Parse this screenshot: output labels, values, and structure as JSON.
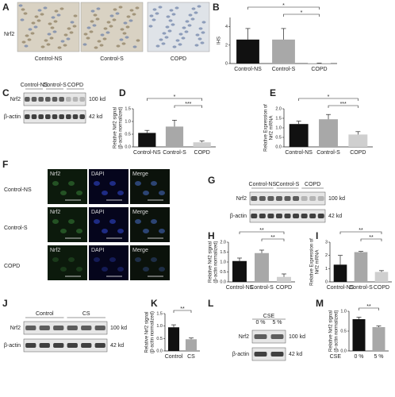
{
  "panel_letters": [
    "A",
    "B",
    "C",
    "D",
    "E",
    "F",
    "G",
    "H",
    "I",
    "J",
    "K",
    "L",
    "M"
  ],
  "micrographs": {
    "row_label": "Nrf2",
    "labels": [
      "Control-NS",
      "Control-S",
      "COPD"
    ]
  },
  "fluorescence": {
    "columns": [
      "Nrf2",
      "DAPI",
      "Merge"
    ],
    "rows": [
      "Control-NS",
      "Control-S",
      "COPD"
    ]
  },
  "blots": [
    {
      "groups": [
        "Control-NS",
        "Control-S",
        "COPD"
      ],
      "rows": [
        "Nrf2",
        "β-actin"
      ],
      "sizes": [
        "100 kd",
        "42 kd"
      ]
    },
    {
      "groups": [
        "Control-NS",
        "Control-S",
        "COPD"
      ],
      "rows": [
        "Nrf2",
        "β-actin"
      ],
      "sizes": [
        "100 kd",
        "42 kd"
      ]
    },
    {
      "groups": [
        "Control",
        "CS"
      ],
      "rows": [
        "Nrf2",
        "β-actin"
      ],
      "sizes": [
        "100 kd",
        "42 kd"
      ]
    },
    {
      "header": "CSE",
      "groups": [
        "0 %",
        "5 %"
      ],
      "rows": [
        "Nrf2",
        "β-actin"
      ],
      "sizes": [
        "100 kd",
        "42 kd"
      ]
    }
  ],
  "chart_data": [
    {
      "type": "bar",
      "ylabel": [
        "IHS"
      ],
      "categories": [
        "Control-NS",
        "Control-S",
        "COPD"
      ],
      "colors": [
        "#111111",
        "#a8a8a8",
        "#cfcfcf"
      ],
      "values": [
        2.6,
        2.6,
        0.05
      ],
      "errors": [
        1.2,
        1.2,
        0
      ],
      "ylim": [
        0,
        5
      ],
      "yticks": [
        0,
        2,
        4
      ],
      "annotations": [
        "*",
        "*"
      ]
    },
    {
      "type": "bar",
      "ylabel": [
        "Relative Nrf2 signal",
        "(β-actin normalized)"
      ],
      "categories": [
        "Control-NS",
        "Control-S",
        "COPD"
      ],
      "colors": [
        "#111111",
        "#a8a8a8",
        "#cfcfcf"
      ],
      "values": [
        0.55,
        0.8,
        0.18
      ],
      "errors": [
        0.1,
        0.25,
        0.05
      ],
      "ylim": [
        0,
        1.5
      ],
      "yticks": [
        {
          "value": 0,
          "label": "0.0"
        },
        {
          "value": 0.5,
          "label": "0.5"
        },
        {
          "value": 1,
          "label": "1.0"
        },
        {
          "value": 1.5,
          "label": "1.5"
        }
      ],
      "annotations": [
        "*",
        "***"
      ]
    },
    {
      "type": "bar",
      "ylabel": [
        "Relative Expression of",
        "Nrf2 mRNA"
      ],
      "categories": [
        "Control-NS",
        "Control-S",
        "COPD"
      ],
      "colors": [
        "#111111",
        "#a8a8a8",
        "#cfcfcf"
      ],
      "values": [
        1.2,
        1.45,
        0.65
      ],
      "errors": [
        0.15,
        0.25,
        0.15
      ],
      "ylim": [
        0,
        2
      ],
      "yticks": [
        {
          "value": 0,
          "label": "0.0"
        },
        {
          "value": 0.5,
          "label": "0.5"
        },
        {
          "value": 1,
          "label": "1.0"
        },
        {
          "value": 1.5,
          "label": "1.5"
        },
        {
          "value": 2,
          "label": "2.0"
        }
      ],
      "annotations": [
        "*",
        "***"
      ]
    },
    {
      "type": "bar",
      "ylabel": [
        "Relative Nrf2 signal",
        "(β-actin normalized)"
      ],
      "categories": [
        "Control-NS",
        "Control-S",
        "COPD"
      ],
      "colors": [
        "#111111",
        "#a8a8a8",
        "#cfcfcf"
      ],
      "values": [
        1.05,
        1.45,
        0.25
      ],
      "errors": [
        0.15,
        0.15,
        0.15
      ],
      "ylim": [
        0,
        2
      ],
      "yticks": [
        {
          "value": 0,
          "label": "0.0"
        },
        {
          "value": 0.5,
          "label": "0.5"
        },
        {
          "value": 1,
          "label": "1.0"
        },
        {
          "value": 1.5,
          "label": "1.5"
        },
        {
          "value": 2,
          "label": "2.0"
        }
      ],
      "annotations": [
        "**",
        "**"
      ]
    },
    {
      "type": "bar",
      "ylabel": [
        "Relative Expression of",
        "Nrf2 mRNA"
      ],
      "categories": [
        "Control-NS",
        "Control-S",
        "COPD"
      ],
      "colors": [
        "#111111",
        "#a8a8a8",
        "#cfcfcf"
      ],
      "values": [
        1.3,
        2.25,
        0.75
      ],
      "errors": [
        0.7,
        0.05,
        0.1
      ],
      "ylim": [
        0,
        3
      ],
      "yticks": [
        0,
        1,
        2,
        3
      ],
      "annotations": [
        "**",
        "**"
      ]
    },
    {
      "type": "bar",
      "ylabel": [
        "Relative Nrf2 signal",
        "(β-actin normalized)"
      ],
      "categories": [
        "Control",
        "CS"
      ],
      "colors": [
        "#111111",
        "#a8a8a8"
      ],
      "values": [
        0.95,
        0.47
      ],
      "errors": [
        0.1,
        0.05
      ],
      "ylim": [
        0,
        1.5
      ],
      "yticks": [
        {
          "value": 0,
          "label": "0.0"
        },
        {
          "value": 0.5,
          "label": "0.5"
        },
        {
          "value": 1,
          "label": "1.0"
        },
        {
          "value": 1.5,
          "label": "1.5"
        }
      ],
      "annotations": [
        "**"
      ]
    },
    {
      "type": "bar",
      "ylabel": [
        "Relative Nrf2 signal",
        "(β-actin normalized)"
      ],
      "xlabel": "CSE",
      "categories": [
        "0 %",
        "5 %"
      ],
      "colors": [
        "#111111",
        "#a8a8a8"
      ],
      "values": [
        0.8,
        0.6
      ],
      "errors": [
        0.05,
        0.03
      ],
      "ylim": [
        0,
        1
      ],
      "yticks": [
        {
          "value": 0,
          "label": "0.0"
        },
        {
          "value": 0.5,
          "label": "0.5"
        },
        {
          "value": 1,
          "label": "1.0"
        }
      ],
      "annotations": [
        "**"
      ]
    }
  ]
}
